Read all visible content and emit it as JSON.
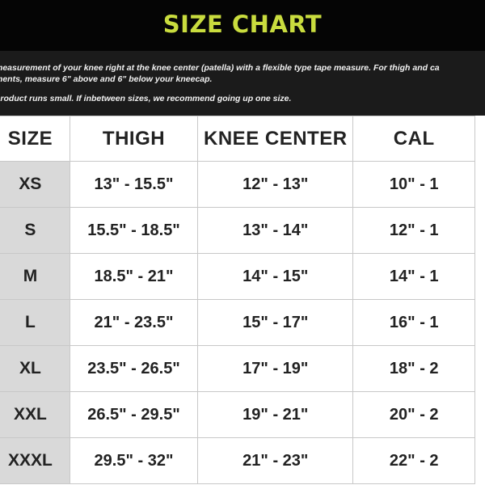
{
  "title": "SIZE CHART",
  "instructions": {
    "line1": "measurement of your knee right at the knee center (patella) with a flexible type tape measure. For thigh and ca",
    "line2": "ments, measure 6\" above and 6\" below your kneecap.",
    "line3": "product runs small. If inbetween sizes, we recommend going up one size."
  },
  "colors": {
    "header_bg": "#050505",
    "title_color": "#c9dc3e",
    "info_bg": "#1b1b1b",
    "size_column_bg": "#d9d9d9"
  },
  "table": {
    "headers": [
      "SIZE",
      "THIGH",
      "KNEE CENTER",
      "CAL"
    ],
    "rows": [
      [
        "XS",
        "13\" - 15.5\"",
        "12\" - 13\"",
        "10\" - 1"
      ],
      [
        "S",
        "15.5\" - 18.5\"",
        "13\" - 14\"",
        "12\" - 1"
      ],
      [
        "M",
        "18.5\" - 21\"",
        "14\" - 15\"",
        "14\" - 1"
      ],
      [
        "L",
        "21\" - 23.5\"",
        "15\" - 17\"",
        "16\" - 1"
      ],
      [
        "XL",
        "23.5\" - 26.5\"",
        "17\" - 19\"",
        "18\" - 2"
      ],
      [
        "XXL",
        "26.5\" - 29.5\"",
        "19\" - 21\"",
        "20\" - 2"
      ],
      [
        "XXXL",
        "29.5\" - 32\"",
        "21\" - 23\"",
        "22\" - 2"
      ]
    ]
  }
}
